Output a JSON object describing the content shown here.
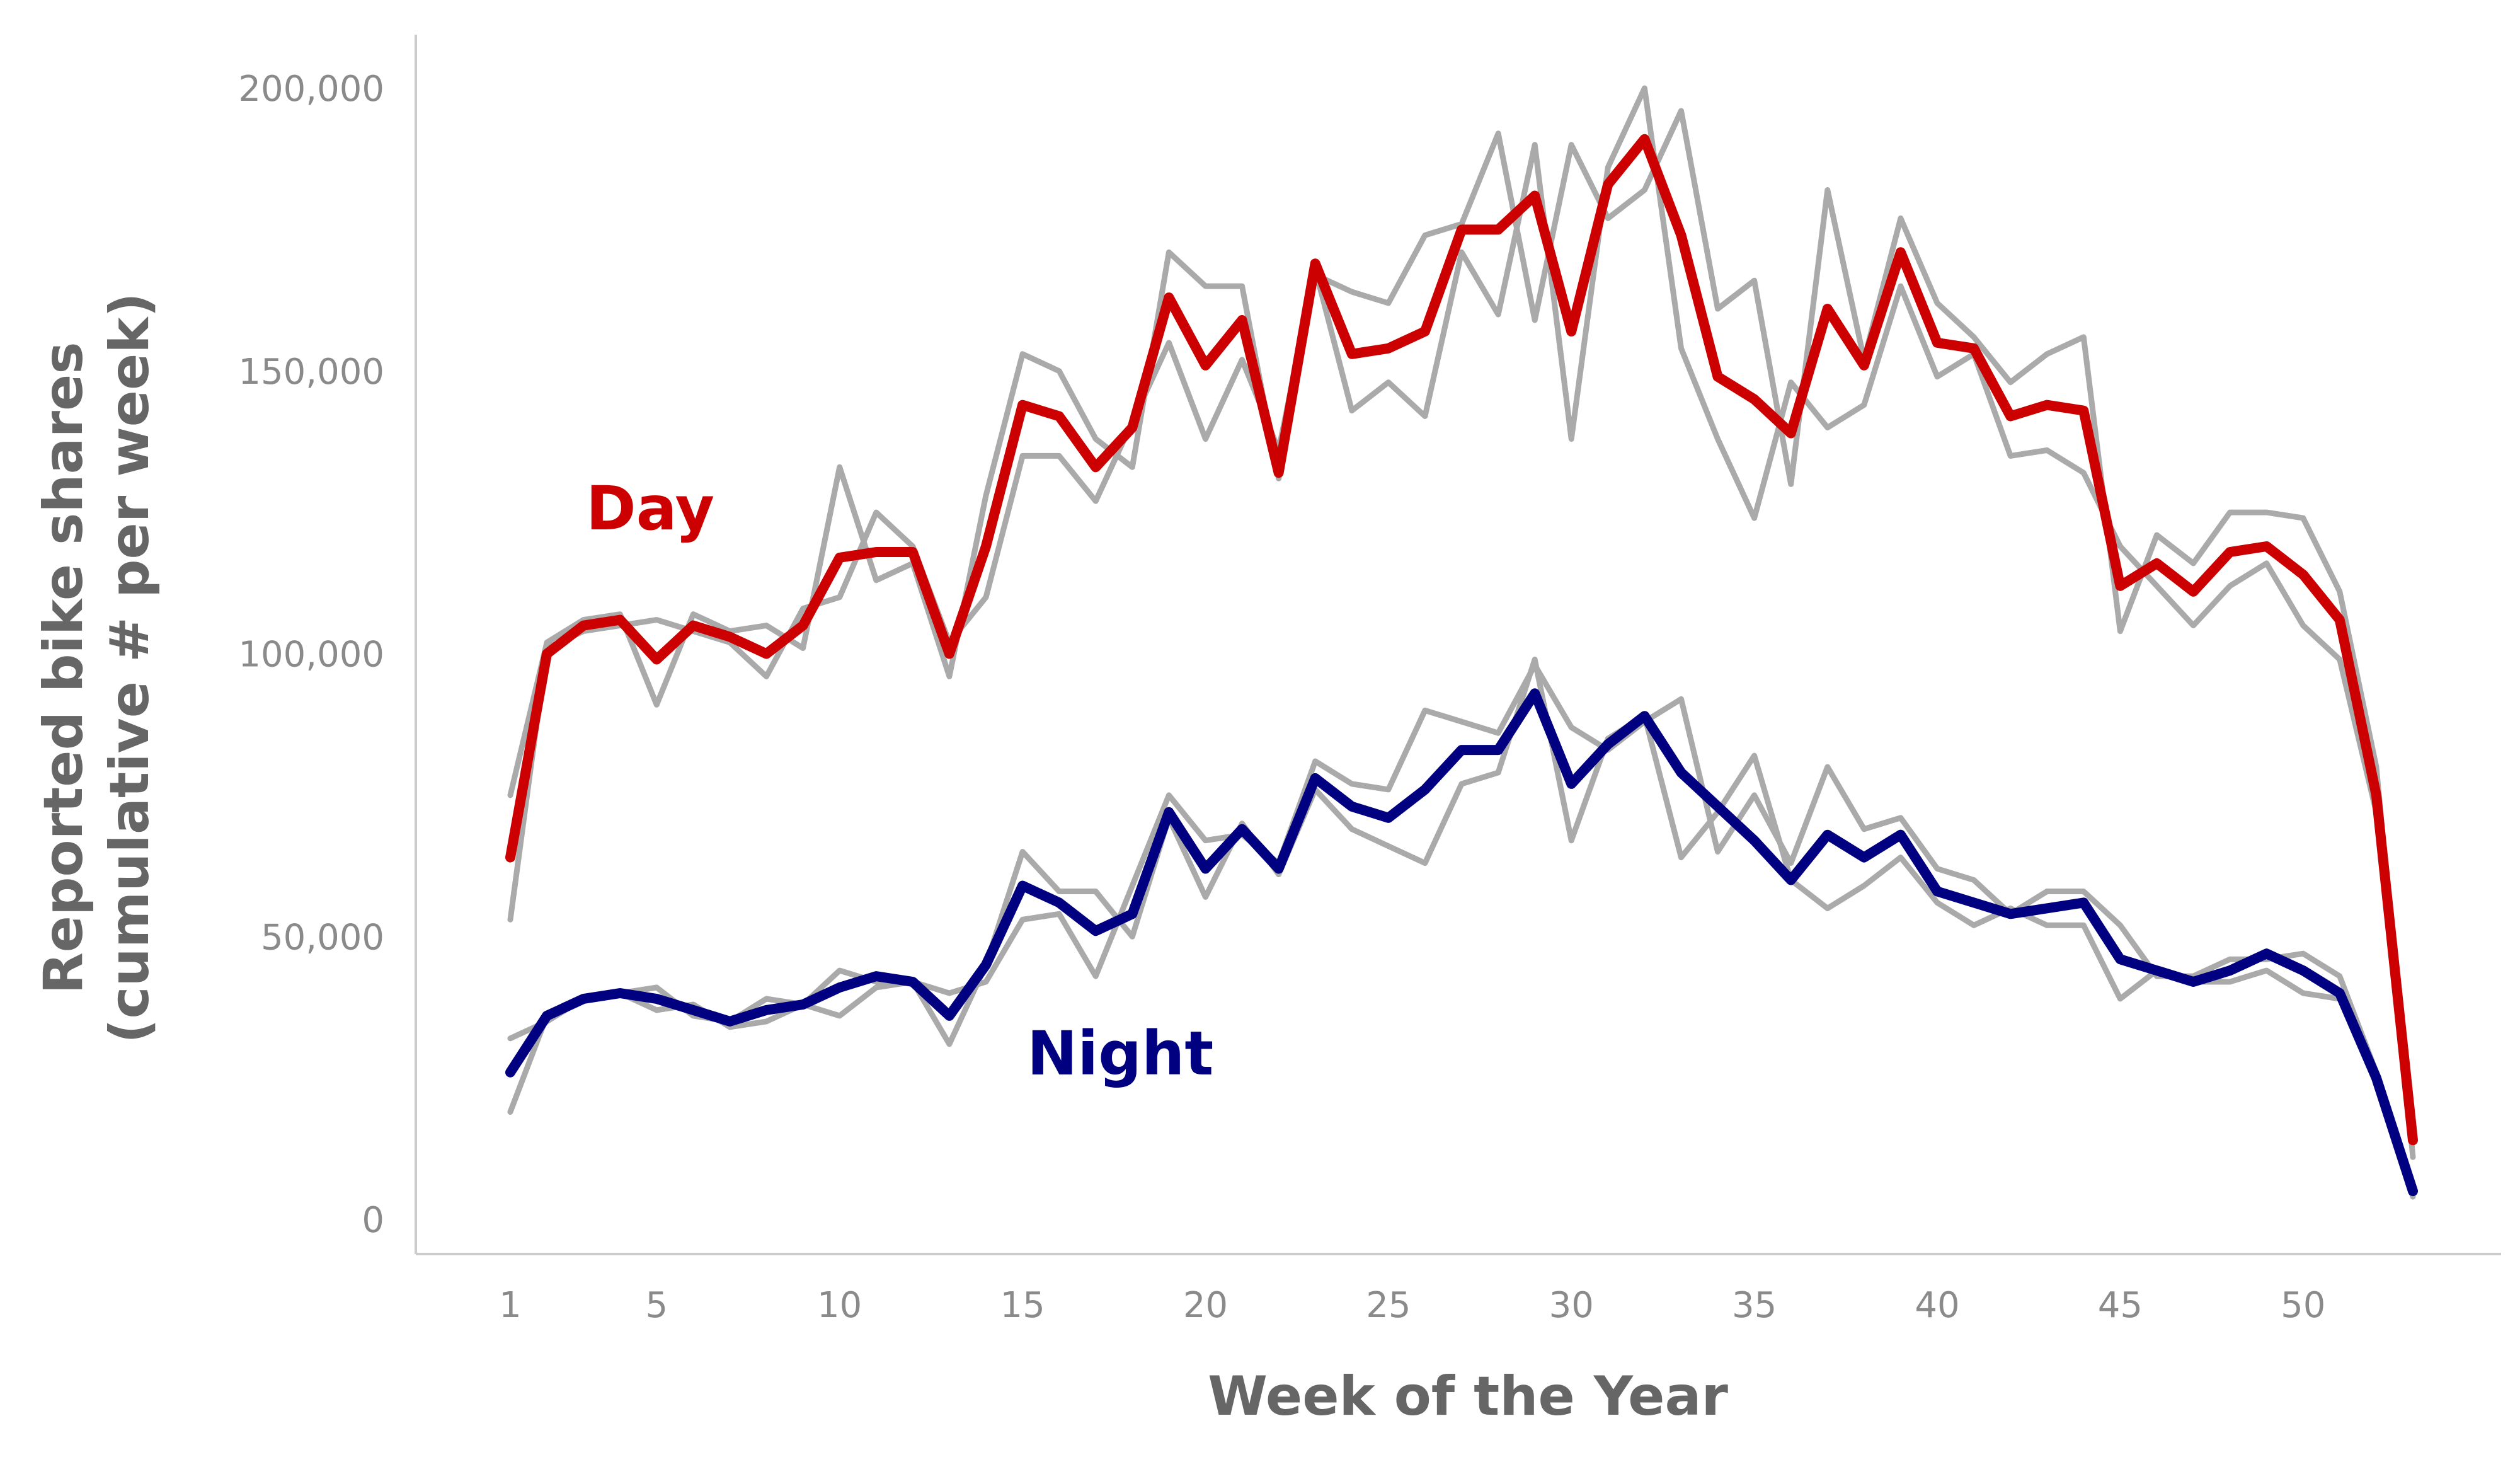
{
  "chart_data": {
    "type": "line",
    "xlabel": "Week of the Year",
    "ylabel_lines": [
      "Reported bike shares",
      "(cumulative # per week)"
    ],
    "x_ticks": [
      1,
      5,
      10,
      15,
      20,
      25,
      30,
      35,
      40,
      45,
      50
    ],
    "y_ticks": [
      0,
      50000,
      100000,
      150000,
      200000
    ],
    "y_tick_labels": [
      "0",
      "50,000",
      "100,000",
      "150,000",
      "200,000"
    ],
    "xlim": [
      1,
      53
    ],
    "ylim": [
      0,
      200000
    ],
    "grid": false,
    "colors": {
      "day": "#cc0000",
      "night": "#000080",
      "gray": "#aaaaaa"
    },
    "x": [
      1,
      2,
      3,
      4,
      5,
      6,
      7,
      8,
      9,
      10,
      11,
      12,
      13,
      14,
      15,
      16,
      17,
      18,
      19,
      20,
      21,
      22,
      23,
      24,
      25,
      26,
      27,
      28,
      29,
      30,
      31,
      32,
      33,
      34,
      35,
      36,
      37,
      38,
      39,
      40,
      41,
      42,
      43,
      44,
      45,
      46,
      47,
      48,
      49,
      50,
      51,
      52,
      53
    ],
    "series": [
      {
        "name": "Day",
        "role": "main",
        "values": [
          64000,
          100000,
          105000,
          106000,
          99000,
          105000,
          103000,
          100000,
          105000,
          117000,
          118000,
          118000,
          100000,
          119000,
          144000,
          142000,
          133000,
          140000,
          163000,
          151000,
          159000,
          132000,
          169000,
          153000,
          154000,
          157000,
          175000,
          175000,
          181000,
          157000,
          183000,
          191000,
          174000,
          149000,
          145000,
          139000,
          161000,
          151000,
          171000,
          155000,
          154000,
          142000,
          144000,
          143000,
          112000,
          116000,
          111000,
          118000,
          119000,
          114000,
          106000,
          75000,
          14000
        ]
      },
      {
        "name": "Night",
        "role": "main",
        "values": [
          26000,
          36000,
          39000,
          40000,
          39000,
          37000,
          35000,
          37000,
          38000,
          41000,
          43000,
          42000,
          36000,
          45000,
          59000,
          56000,
          51000,
          54000,
          72000,
          62000,
          69000,
          62000,
          78000,
          73000,
          71000,
          76000,
          83000,
          83000,
          93000,
          77000,
          84000,
          89000,
          79000,
          73000,
          67000,
          60000,
          68000,
          64000,
          68000,
          58000,
          56000,
          54000,
          55000,
          56000,
          46000,
          44000,
          42000,
          44000,
          47000,
          44000,
          40000,
          25000,
          5000
        ]
      },
      {
        "role": "context",
        "values": [
          75000,
          102000,
          106000,
          107000,
          91000,
          107000,
          104000,
          105000,
          101000,
          133000,
          113000,
          116000,
          96000,
          128000,
          153000,
          150000,
          138000,
          133000,
          171000,
          165000,
          165000,
          131000,
          167000,
          164000,
          162000,
          174000,
          176000,
          192000,
          159000,
          190000,
          177000,
          182000,
          196000,
          161000,
          166000,
          130000,
          182000,
          152000,
          177000,
          162000,
          156000,
          148000,
          153000,
          156000,
          104000,
          121000,
          116000,
          125000,
          125000,
          124000,
          111000,
          80000,
          11000
        ]
      },
      {
        "role": "context",
        "values": [
          53000,
          101000,
          104000,
          105000,
          106000,
          104000,
          102000,
          96000,
          108000,
          110000,
          125000,
          119000,
          102000,
          110000,
          135000,
          135000,
          127000,
          141000,
          155000,
          138000,
          152000,
          136000,
          168000,
          143000,
          148000,
          142000,
          171000,
          160000,
          190000,
          138000,
          186000,
          200000,
          154000,
          138000,
          124000,
          148000,
          140000,
          144000,
          165000,
          149000,
          153000,
          135000,
          136000,
          132000,
          119000,
          112000,
          105000,
          112000,
          116000,
          105000,
          99000,
          72000,
          17000
        ]
      },
      {
        "role": "context",
        "values": [
          32000,
          35000,
          39000,
          40000,
          41000,
          36000,
          35000,
          39000,
          38000,
          44000,
          42000,
          42000,
          40000,
          42000,
          53000,
          54000,
          43000,
          59000,
          75000,
          67000,
          68000,
          63000,
          81000,
          77000,
          76000,
          90000,
          88000,
          86000,
          98000,
          87000,
          83000,
          88000,
          92000,
          65000,
          75000,
          63000,
          80000,
          69000,
          71000,
          62000,
          60000,
          54000,
          58000,
          58000,
          52000,
          43000,
          43000,
          46000,
          46000,
          47000,
          43000,
          26000,
          6000
        ]
      },
      {
        "role": "context",
        "values": [
          19000,
          36000,
          39000,
          40000,
          37000,
          38000,
          34000,
          35000,
          38000,
          36000,
          41000,
          42000,
          31000,
          45000,
          65000,
          58000,
          58000,
          50000,
          71000,
          57000,
          70000,
          61000,
          76000,
          69000,
          66000,
          63000,
          77000,
          79000,
          99000,
          67000,
          85000,
          89000,
          64000,
          72000,
          82000,
          60000,
          55000,
          59000,
          64000,
          56000,
          52000,
          55000,
          52000,
          52000,
          39000,
          44000,
          42000,
          42000,
          44000,
          40000,
          39000,
          26000,
          4000
        ]
      }
    ]
  }
}
